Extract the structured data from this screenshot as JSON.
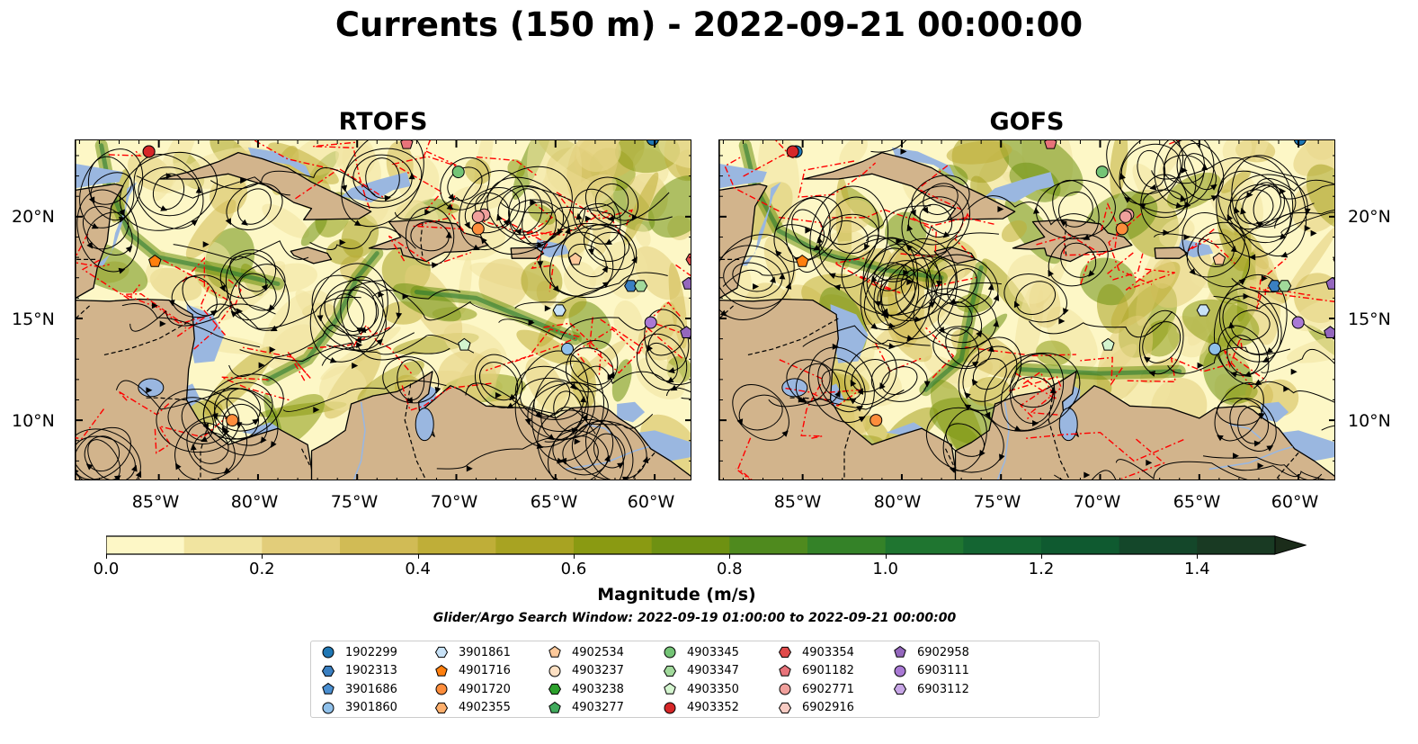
{
  "title": "Currents (150 m) - 2022-09-21 00:00:00",
  "panels": [
    {
      "title": "RTOFS"
    },
    {
      "title": "GOFS"
    }
  ],
  "lat_labels": [
    "20°N",
    "15°N",
    "10°N"
  ],
  "lon_labels": [
    "85°W",
    "80°W",
    "75°W",
    "70°W",
    "65°W",
    "60°W"
  ],
  "colorbar": {
    "label": "Magnitude (m/s)",
    "ticks": [
      "0.0",
      "0.2",
      "0.4",
      "0.6",
      "0.8",
      "1.0",
      "1.2",
      "1.4"
    ],
    "range": [
      0,
      1.5
    ],
    "extend": "max",
    "colors": [
      "#fdf7c6",
      "#f1e4a0",
      "#e2cd7a",
      "#d1bb55",
      "#bfae38",
      "#a8a322",
      "#8a9a12",
      "#6e9112",
      "#4f8a1e",
      "#348228",
      "#1f7530",
      "#146532",
      "#0f5a30",
      "#14472a",
      "#193a23",
      "#1b2c1a"
    ]
  },
  "search_window": "Glider/Argo Search Window: 2022-09-19 01:00:00 to 2022-09-21 00:00:00",
  "legend": [
    {
      "id": "1902299",
      "shape": "circle",
      "color": "#1f77b4"
    },
    {
      "id": "1902313",
      "shape": "hexagon",
      "color": "#3a7fc1"
    },
    {
      "id": "3901686",
      "shape": "pentagon",
      "color": "#4a8fd1"
    },
    {
      "id": "3901860",
      "shape": "circle",
      "color": "#8fc0ea"
    },
    {
      "id": "3901861",
      "shape": "hexagon",
      "color": "#c8e2f7"
    },
    {
      "id": "4901716",
      "shape": "pentagon",
      "color": "#ff7f0e"
    },
    {
      "id": "4901720",
      "shape": "circle",
      "color": "#fd8d3c"
    },
    {
      "id": "4902355",
      "shape": "hexagon",
      "color": "#fdae6b"
    },
    {
      "id": "4902534",
      "shape": "pentagon",
      "color": "#fdc99b"
    },
    {
      "id": "4903237",
      "shape": "circle",
      "color": "#fde0c3"
    },
    {
      "id": "4903238",
      "shape": "hexagon",
      "color": "#2ca02c"
    },
    {
      "id": "4903277",
      "shape": "pentagon",
      "color": "#41ab5d"
    },
    {
      "id": "4903345",
      "shape": "circle",
      "color": "#74c476"
    },
    {
      "id": "4903347",
      "shape": "hexagon",
      "color": "#a1d99b"
    },
    {
      "id": "4903350",
      "shape": "pentagon",
      "color": "#d4f5cf"
    },
    {
      "id": "4903352",
      "shape": "circle",
      "color": "#d62728"
    },
    {
      "id": "4903354",
      "shape": "hexagon",
      "color": "#e04a4a"
    },
    {
      "id": "6901182",
      "shape": "pentagon",
      "color": "#e8737a"
    },
    {
      "id": "6902771",
      "shape": "circle",
      "color": "#f0a09c"
    },
    {
      "id": "6902916",
      "shape": "hexagon",
      "color": "#f8cbc3"
    },
    {
      "id": "6902958",
      "shape": "pentagon",
      "color": "#9467bd"
    },
    {
      "id": "6903111",
      "shape": "circle",
      "color": "#a979d4"
    },
    {
      "id": "6903112",
      "shape": "hexagon",
      "color": "#c7a6e6"
    }
  ],
  "colors": {
    "land": "#d2b48c",
    "ocean_shallow": "#9ab7e0",
    "eez_boundary": "#ff0000",
    "river": "#9ab7e0"
  }
}
